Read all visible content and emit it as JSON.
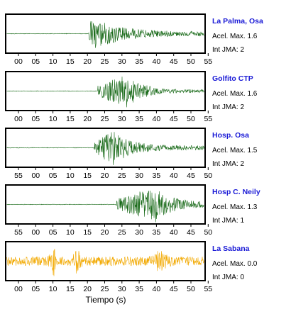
{
  "chart_data": {
    "type": "line",
    "xlabel": "Tiempo (s)",
    "panels": [
      {
        "name": "La Palma, Osa",
        "accel_label": "Acel. Max. 1.6",
        "jma_label": "Int JMA: 2",
        "color": "#1a6b1a",
        "tick_labels": [
          "00",
          "05",
          "10",
          "15",
          "20",
          "25",
          "30",
          "35",
          "40",
          "45",
          "50",
          "55"
        ],
        "onset_s": 20.3,
        "peak_s": 21.5,
        "peak_amp": 1.0,
        "decay_s": 7.0,
        "end_amp": 0.12,
        "seed": 3
      },
      {
        "name": "Golfito CTP",
        "accel_label": "Acel. Max. 1.6",
        "jma_label": "Int JMA: 2",
        "color": "#1a6b1a",
        "tick_labels": [
          "00",
          "05",
          "10",
          "15",
          "20",
          "25",
          "30",
          "35",
          "40",
          "45",
          "50",
          "55"
        ],
        "onset_s": 23.0,
        "peak_s": 31.8,
        "peak_amp": 1.0,
        "decay_s": 4.0,
        "end_amp": 0.08,
        "seed": 7
      },
      {
        "name": "Hosp. Osa",
        "accel_label": "Acel. Max. 1.5",
        "jma_label": "Int JMA: 2",
        "color": "#1a6b1a",
        "tick_labels": [
          "55",
          "00",
          "05",
          "10",
          "15",
          "20",
          "25",
          "30",
          "35",
          "40",
          "45",
          "50"
        ],
        "onset_s": 22.0,
        "peak_s": 27.5,
        "peak_amp": 1.0,
        "decay_s": 5.0,
        "end_amp": 0.12,
        "seed": 11
      },
      {
        "name": "Hosp C. Neily",
        "accel_label": "Acel. Max. 1.3",
        "jma_label": "Int JMA: 1",
        "color": "#1a6b1a",
        "tick_labels": [
          "55",
          "00",
          "05",
          "10",
          "15",
          "20",
          "25",
          "30",
          "35",
          "40",
          "45",
          "50"
        ],
        "onset_s": 28.3,
        "peak_s": 40.0,
        "peak_amp": 1.0,
        "decay_s": 4.0,
        "end_amp": 0.15,
        "seed": 19
      },
      {
        "name": "La Sabana",
        "accel_label": "Acel. Max. 0.0",
        "jma_label": "Int JMA: 0",
        "color": "#f2a900",
        "tick_labels": [
          "00",
          "05",
          "10",
          "15",
          "20",
          "25",
          "30",
          "35",
          "40",
          "45",
          "50",
          "55"
        ],
        "onset_s": 0.0,
        "peak_s": 10.0,
        "peak_amp": 1.0,
        "decay_s": 3.0,
        "end_amp": 0.25,
        "seed": 23
      }
    ]
  }
}
